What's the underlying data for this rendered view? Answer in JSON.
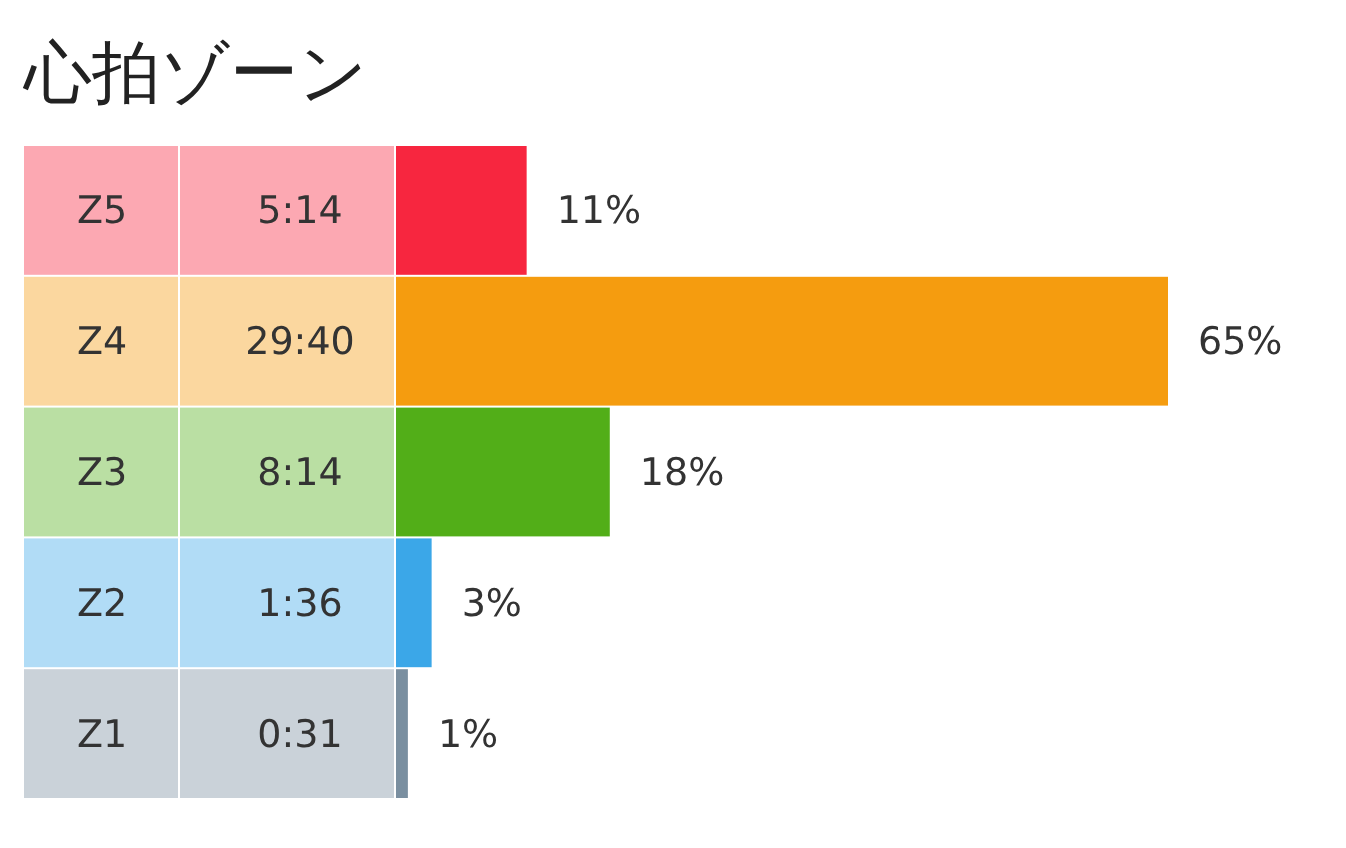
{
  "chart_data": {
    "type": "bar",
    "orientation": "horizontal",
    "title": "心拍ゾーン",
    "categories": [
      "Z5",
      "Z4",
      "Z3",
      "Z2",
      "Z1"
    ],
    "values": [
      11,
      65,
      18,
      3,
      1
    ],
    "colors": [
      "#f7263f",
      "#f59c0f",
      "#52ae18",
      "#3ba7e8",
      "#7a8fa0"
    ],
    "value_labels": [
      "11%",
      "65%",
      "18%",
      "3%",
      "1%"
    ],
    "annotations": [
      "5:14",
      "29:40",
      "8:14",
      "1:36",
      "0:31"
    ]
  }
}
